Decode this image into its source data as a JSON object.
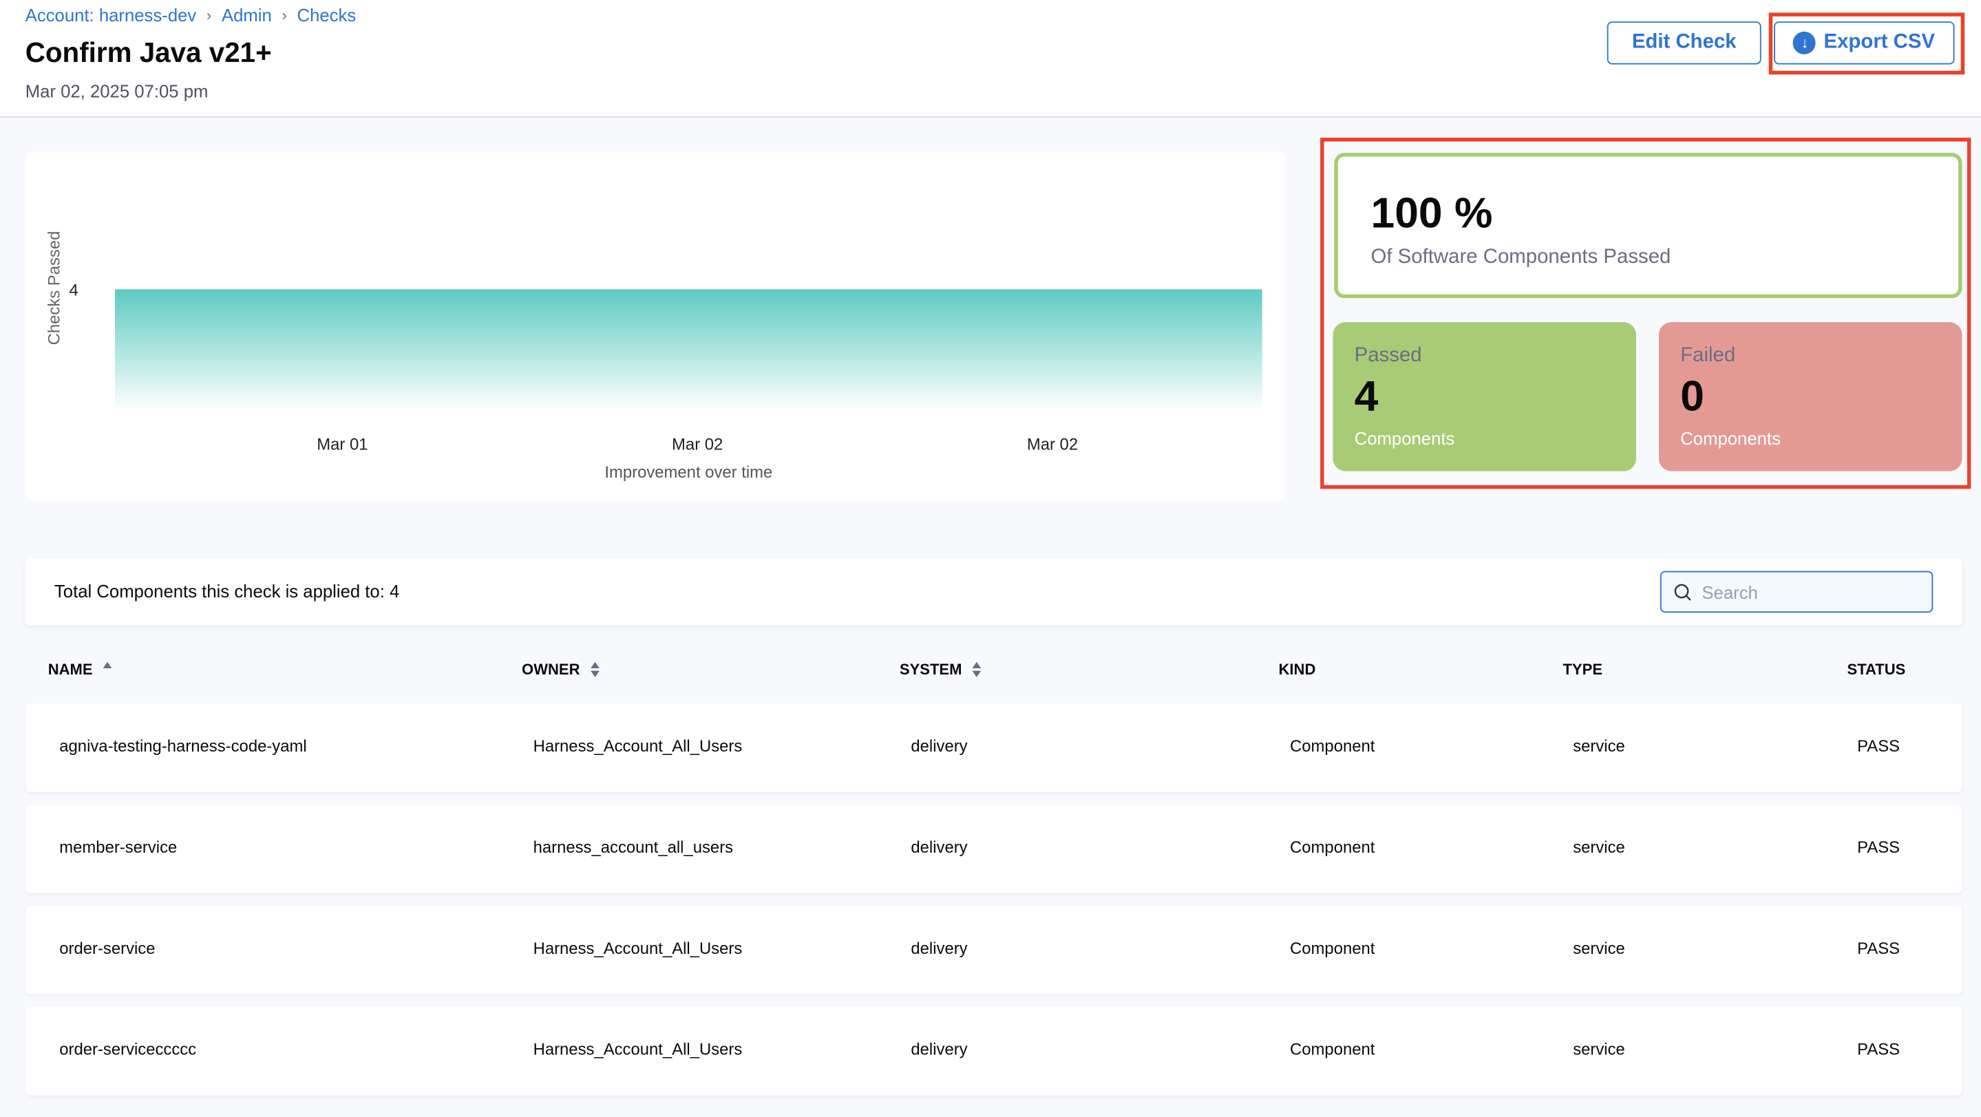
{
  "breadcrumb": [
    "Account: harness-dev",
    "Admin",
    "Checks"
  ],
  "page": {
    "title": "Confirm Java v21+",
    "date": "Mar 02, 2025 07:05 pm"
  },
  "actions": {
    "edit": "Edit Check",
    "export": "Export CSV",
    "export_icon": "download-circle-icon"
  },
  "summary": {
    "percent": "100 %",
    "subtitle": "Of Software Components Passed",
    "passed": {
      "label": "Passed",
      "count": "4",
      "unit": "Components"
    },
    "failed": {
      "label": "Failed",
      "count": "0",
      "unit": "Components"
    }
  },
  "colors": {
    "accent": "#2f74d0",
    "passed": "#a8cc75",
    "failed": "#e49a94",
    "area": "#5ecbc2",
    "highlight": "#e8432b"
  },
  "chart_data": {
    "type": "area",
    "x": [
      "Mar 01",
      "Mar 02",
      "Mar 02"
    ],
    "y": [
      4,
      4,
      4
    ],
    "ylabel": "Checks Passed",
    "xlabel": "Improvement over time",
    "yticks": [
      "4"
    ],
    "grid": false
  },
  "table": {
    "total_label": "Total Components this check is applied to: 4",
    "search_placeholder": "Search",
    "columns": [
      "NAME",
      "OWNER",
      "SYSTEM",
      "KIND",
      "TYPE",
      "STATUS"
    ],
    "rows": [
      [
        "agniva-testing-harness-code-yaml",
        "Harness_Account_All_Users",
        "delivery",
        "Component",
        "service",
        "PASS"
      ],
      [
        "member-service",
        "harness_account_all_users",
        "delivery",
        "Component",
        "service",
        "PASS"
      ],
      [
        "order-service",
        "Harness_Account_All_Users",
        "delivery",
        "Component",
        "service",
        "PASS"
      ],
      [
        "order-serviceccccc",
        "Harness_Account_All_Users",
        "delivery",
        "Component",
        "service",
        "PASS"
      ]
    ]
  }
}
